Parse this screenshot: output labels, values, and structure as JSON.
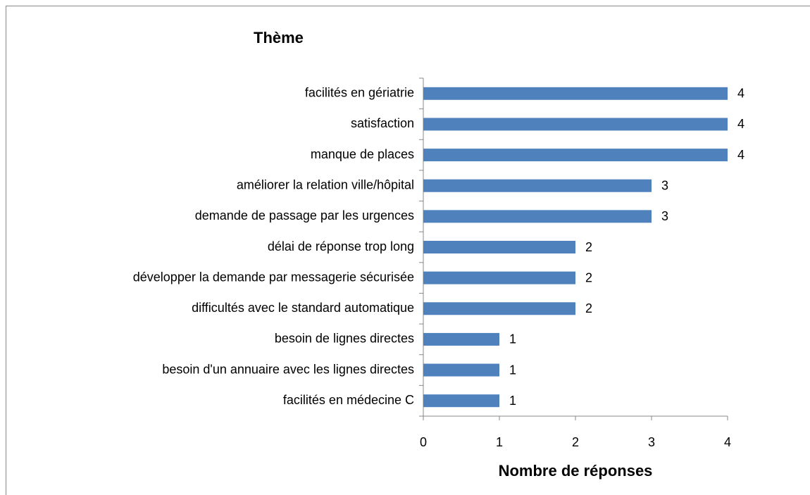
{
  "chart_data": {
    "type": "bar",
    "orientation": "horizontal",
    "title": "Thème",
    "x_label": "Nombre de réponses",
    "categories": [
      "facilités en gériatrie",
      "satisfaction",
      "manque de places",
      "améliorer la relation ville/hôpital",
      "demande de passage par les urgences",
      "délai de réponse trop long",
      "développer la demande par messagerie sécurisée",
      "difficultés avec le standard automatique",
      "besoin de lignes directes",
      "besoin d'un annuaire avec les lignes directes",
      "facilités en médecine C"
    ],
    "values": [
      4,
      4,
      4,
      3,
      3,
      2,
      2,
      2,
      1,
      1,
      1
    ],
    "color": "#4f81bd",
    "xlim": [
      0,
      4
    ],
    "xticks": [
      0,
      1,
      2,
      3,
      4
    ],
    "grid": false
  }
}
